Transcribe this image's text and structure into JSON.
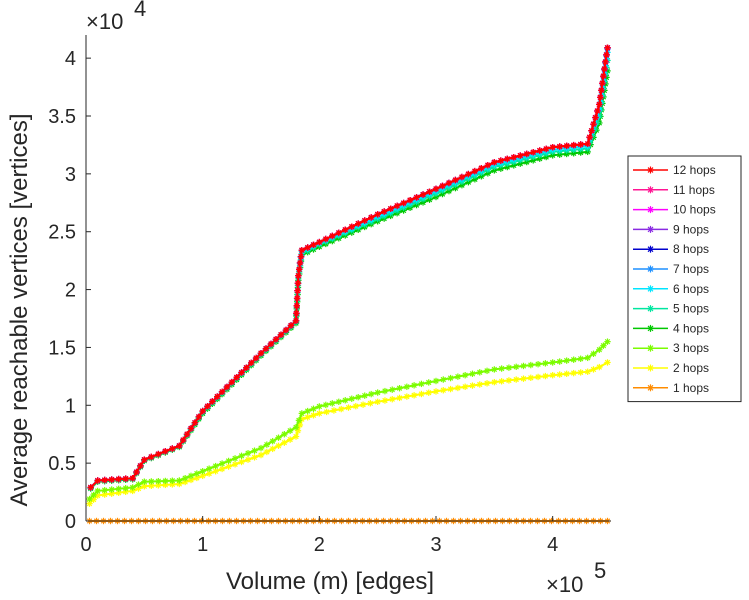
{
  "chart_data": {
    "type": "line",
    "title": "",
    "xlabel": "Volume (m) [edges]",
    "ylabel": "Average reachable vertices [vertices]",
    "x_multiplier": "×10",
    "x_multiplier_exp": "5",
    "y_multiplier": "×10",
    "y_multiplier_exp": "4",
    "xlim": [
      0,
      450000
    ],
    "ylim": [
      0,
      42000
    ],
    "x_ticks": [
      0,
      100000,
      200000,
      300000,
      400000
    ],
    "x_tick_labels": [
      "0",
      "1",
      "2",
      "3",
      "4"
    ],
    "y_ticks": [
      0,
      5000,
      10000,
      15000,
      20000,
      25000,
      30000,
      35000,
      40000
    ],
    "y_tick_labels": [
      "0",
      "0.5",
      "1",
      "1.5",
      "2",
      "2.5",
      "3",
      "3.5",
      "4"
    ],
    "grid": false,
    "legend_position": "right",
    "marker": "asterisk",
    "series": [
      {
        "name": "12 hops",
        "color": "#ff0000",
        "points": [
          [
            4000,
            2900
          ],
          [
            10000,
            3500
          ],
          [
            40000,
            3700
          ],
          [
            50000,
            5300
          ],
          [
            80000,
            6500
          ],
          [
            100000,
            9500
          ],
          [
            150000,
            14500
          ],
          [
            180000,
            17300
          ],
          [
            182000,
            21200
          ],
          [
            185000,
            23400
          ],
          [
            200000,
            24100
          ],
          [
            250000,
            26500
          ],
          [
            300000,
            28700
          ],
          [
            350000,
            31000
          ],
          [
            400000,
            32300
          ],
          [
            430000,
            32600
          ],
          [
            440000,
            36000
          ],
          [
            447000,
            40900
          ]
        ]
      },
      {
        "name": "11 hops",
        "color": "#ff1493",
        "points": [
          [
            4000,
            2900
          ],
          [
            10000,
            3500
          ],
          [
            40000,
            3700
          ],
          [
            50000,
            5300
          ],
          [
            80000,
            6500
          ],
          [
            100000,
            9500
          ],
          [
            150000,
            14500
          ],
          [
            180000,
            17300
          ],
          [
            182000,
            21200
          ],
          [
            185000,
            23400
          ],
          [
            200000,
            24100
          ],
          [
            250000,
            26500
          ],
          [
            300000,
            28700
          ],
          [
            350000,
            31000
          ],
          [
            400000,
            32300
          ],
          [
            430000,
            32600
          ],
          [
            440000,
            36000
          ],
          [
            447000,
            40900
          ]
        ]
      },
      {
        "name": "10 hops",
        "color": "#ff00ff",
        "points": [
          [
            4000,
            2900
          ],
          [
            10000,
            3500
          ],
          [
            40000,
            3700
          ],
          [
            50000,
            5300
          ],
          [
            80000,
            6500
          ],
          [
            100000,
            9500
          ],
          [
            150000,
            14500
          ],
          [
            180000,
            17300
          ],
          [
            182000,
            21200
          ],
          [
            185000,
            23400
          ],
          [
            200000,
            24100
          ],
          [
            250000,
            26500
          ],
          [
            300000,
            28700
          ],
          [
            350000,
            31000
          ],
          [
            400000,
            32300
          ],
          [
            430000,
            32600
          ],
          [
            440000,
            36000
          ],
          [
            447000,
            40900
          ]
        ]
      },
      {
        "name": "9 hops",
        "color": "#8a2be2",
        "points": [
          [
            4000,
            2900
          ],
          [
            10000,
            3500
          ],
          [
            40000,
            3700
          ],
          [
            50000,
            5300
          ],
          [
            80000,
            6500
          ],
          [
            100000,
            9500
          ],
          [
            150000,
            14500
          ],
          [
            180000,
            17300
          ],
          [
            182000,
            21200
          ],
          [
            185000,
            23400
          ],
          [
            200000,
            24100
          ],
          [
            250000,
            26500
          ],
          [
            300000,
            28700
          ],
          [
            350000,
            31000
          ],
          [
            400000,
            32300
          ],
          [
            430000,
            32600
          ],
          [
            440000,
            36000
          ],
          [
            447000,
            40900
          ]
        ]
      },
      {
        "name": "8 hops",
        "color": "#0000cd",
        "points": [
          [
            4000,
            2900
          ],
          [
            10000,
            3500
          ],
          [
            40000,
            3700
          ],
          [
            50000,
            5300
          ],
          [
            80000,
            6500
          ],
          [
            100000,
            9500
          ],
          [
            150000,
            14500
          ],
          [
            180000,
            17300
          ],
          [
            182000,
            21200
          ],
          [
            185000,
            23400
          ],
          [
            200000,
            24100
          ],
          [
            250000,
            26500
          ],
          [
            300000,
            28700
          ],
          [
            350000,
            31000
          ],
          [
            400000,
            32300
          ],
          [
            430000,
            32600
          ],
          [
            440000,
            36000
          ],
          [
            447000,
            40900
          ]
        ]
      },
      {
        "name": "7 hops",
        "color": "#1e90ff",
        "points": [
          [
            4000,
            2900
          ],
          [
            10000,
            3500
          ],
          [
            40000,
            3700
          ],
          [
            50000,
            5300
          ],
          [
            80000,
            6500
          ],
          [
            100000,
            9500
          ],
          [
            150000,
            14500
          ],
          [
            180000,
            17300
          ],
          [
            182000,
            21200
          ],
          [
            185000,
            23400
          ],
          [
            200000,
            24100
          ],
          [
            250000,
            26500
          ],
          [
            300000,
            28700
          ],
          [
            350000,
            31000
          ],
          [
            400000,
            32300
          ],
          [
            430000,
            32600
          ],
          [
            440000,
            36000
          ],
          [
            447000,
            40800
          ]
        ]
      },
      {
        "name": "6 hops",
        "color": "#00e5ff",
        "points": [
          [
            4000,
            2900
          ],
          [
            10000,
            3500
          ],
          [
            40000,
            3700
          ],
          [
            50000,
            5300
          ],
          [
            80000,
            6500
          ],
          [
            100000,
            9500
          ],
          [
            150000,
            14500
          ],
          [
            180000,
            17300
          ],
          [
            182000,
            21200
          ],
          [
            185000,
            23300
          ],
          [
            200000,
            24000
          ],
          [
            250000,
            26300
          ],
          [
            300000,
            28500
          ],
          [
            350000,
            30800
          ],
          [
            400000,
            32100
          ],
          [
            430000,
            32400
          ],
          [
            440000,
            35500
          ],
          [
            447000,
            40500
          ]
        ]
      },
      {
        "name": "5 hops",
        "color": "#00e6a0",
        "points": [
          [
            4000,
            2850
          ],
          [
            10000,
            3450
          ],
          [
            40000,
            3650
          ],
          [
            50000,
            5250
          ],
          [
            80000,
            6450
          ],
          [
            100000,
            9400
          ],
          [
            150000,
            14400
          ],
          [
            180000,
            17200
          ],
          [
            182000,
            21000
          ],
          [
            185000,
            23100
          ],
          [
            200000,
            23900
          ],
          [
            250000,
            26100
          ],
          [
            300000,
            28300
          ],
          [
            350000,
            30600
          ],
          [
            400000,
            31900
          ],
          [
            430000,
            32200
          ],
          [
            440000,
            35000
          ],
          [
            447000,
            39800
          ]
        ]
      },
      {
        "name": "4 hops",
        "color": "#00c800",
        "points": [
          [
            4000,
            2800
          ],
          [
            10000,
            3400
          ],
          [
            40000,
            3600
          ],
          [
            50000,
            5200
          ],
          [
            80000,
            6400
          ],
          [
            100000,
            9300
          ],
          [
            150000,
            14300
          ],
          [
            180000,
            17100
          ],
          [
            182000,
            20800
          ],
          [
            185000,
            23000
          ],
          [
            200000,
            23700
          ],
          [
            250000,
            25900
          ],
          [
            300000,
            28000
          ],
          [
            350000,
            30300
          ],
          [
            400000,
            31600
          ],
          [
            430000,
            31900
          ],
          [
            440000,
            34400
          ],
          [
            447000,
            38900
          ]
        ]
      },
      {
        "name": "3 hops",
        "color": "#7cfc00",
        "points": [
          [
            3000,
            1900
          ],
          [
            10000,
            2600
          ],
          [
            40000,
            2900
          ],
          [
            50000,
            3400
          ],
          [
            80000,
            3500
          ],
          [
            100000,
            4300
          ],
          [
            150000,
            6300
          ],
          [
            180000,
            8100
          ],
          [
            185000,
            9300
          ],
          [
            200000,
            9900
          ],
          [
            250000,
            11100
          ],
          [
            300000,
            12100
          ],
          [
            350000,
            13100
          ],
          [
            400000,
            13700
          ],
          [
            430000,
            14100
          ],
          [
            440000,
            14800
          ],
          [
            447000,
            15500
          ]
        ]
      },
      {
        "name": "2 hops",
        "color": "#ffff00",
        "points": [
          [
            3000,
            1500
          ],
          [
            10000,
            2200
          ],
          [
            40000,
            2600
          ],
          [
            50000,
            3000
          ],
          [
            80000,
            3200
          ],
          [
            100000,
            3900
          ],
          [
            150000,
            5700
          ],
          [
            180000,
            7300
          ],
          [
            185000,
            8800
          ],
          [
            200000,
            9300
          ],
          [
            250000,
            10300
          ],
          [
            300000,
            11200
          ],
          [
            350000,
            12000
          ],
          [
            400000,
            12600
          ],
          [
            430000,
            12900
          ],
          [
            440000,
            13300
          ],
          [
            447000,
            13700
          ]
        ]
      },
      {
        "name": "1 hops",
        "color": "#ff8c00",
        "points": [
          [
            3000,
            0
          ],
          [
            447000,
            0
          ]
        ]
      }
    ]
  }
}
